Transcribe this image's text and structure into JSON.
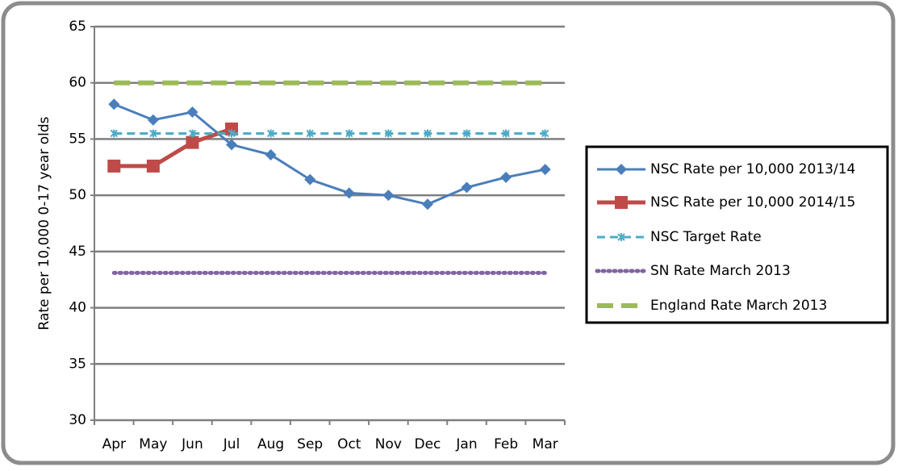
{
  "chart_data": {
    "type": "line",
    "y_label": "Rate per 10,000 0-17 year olds",
    "categories": [
      "Apr",
      "May",
      "Jun",
      "Jul",
      "Aug",
      "Sep",
      "Oct",
      "Nov",
      "Dec",
      "Jan",
      "Feb",
      "Mar"
    ],
    "series": [
      {
        "name": "NSC Rate  per 10,000 2013/14",
        "color": "#4a7ebb",
        "marker": "diamond",
        "dash": "solid",
        "width": 3,
        "values": [
          58.1,
          56.7,
          57.4,
          54.5,
          53.6,
          51.4,
          50.2,
          50.0,
          49.2,
          50.7,
          51.6,
          52.3
        ]
      },
      {
        "name": "NSC Rate  per 10,000 2014/15",
        "color": "#be4b48",
        "marker": "square",
        "dash": "solid",
        "width": 5,
        "values": [
          52.6,
          52.6,
          54.7,
          55.9,
          null,
          null,
          null,
          null,
          null,
          null,
          null,
          null
        ]
      },
      {
        "name": "NSC Target Rate",
        "color": "#4bacc6",
        "marker": "star",
        "dash": "dashed",
        "width": 3,
        "values": [
          55.5,
          55.5,
          55.5,
          55.5,
          55.5,
          55.5,
          55.5,
          55.5,
          55.5,
          55.5,
          55.5,
          55.5
        ]
      },
      {
        "name": "SN Rate March 2013",
        "color": "#8064a2",
        "marker": "none",
        "dash": "dotted",
        "width": 5,
        "values": [
          43.1,
          43.1,
          43.1,
          43.1,
          43.1,
          43.1,
          43.1,
          43.1,
          43.1,
          43.1,
          43.1,
          43.1
        ]
      },
      {
        "name": "England Rate March 2013",
        "color": "#9bbb59",
        "marker": "none",
        "dash": "longdash",
        "width": 6,
        "values": [
          60,
          60,
          60,
          60,
          60,
          60,
          60,
          60,
          60,
          60,
          60,
          60
        ]
      }
    ],
    "ylim": [
      30,
      65
    ],
    "yticks": [
      30,
      35,
      40,
      45,
      50,
      55,
      60,
      65
    ],
    "grid": true,
    "legend": "right"
  }
}
